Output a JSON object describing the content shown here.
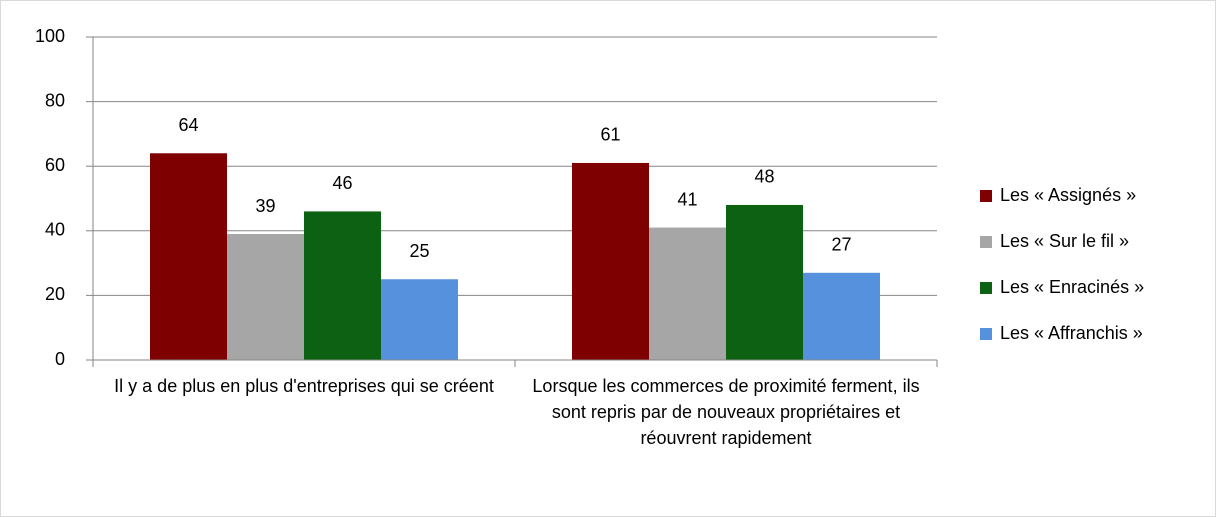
{
  "chart_data": {
    "type": "bar",
    "categories": [
      "Il y a de plus en plus d'entreprises qui se créent",
      "Lorsque les commerces de proximité ferment, ils sont repris par de nouveaux propriétaires et réouvrent rapidement"
    ],
    "series": [
      {
        "name": "Les « Assignés »",
        "color": "#7f0000",
        "values": [
          64,
          61
        ]
      },
      {
        "name": "Les « Sur le fil »",
        "color": "#a6a6a6",
        "values": [
          39,
          41
        ]
      },
      {
        "name": "Les « Enracinés »",
        "color": "#0d6112",
        "values": [
          46,
          48
        ]
      },
      {
        "name": "Les « Affranchis »",
        "color": "#5591dc",
        "values": [
          25,
          27
        ]
      }
    ],
    "ylim": [
      0,
      100
    ],
    "yticks": [
      0,
      20,
      40,
      60,
      80,
      100
    ],
    "grid": true,
    "legend": "right"
  }
}
